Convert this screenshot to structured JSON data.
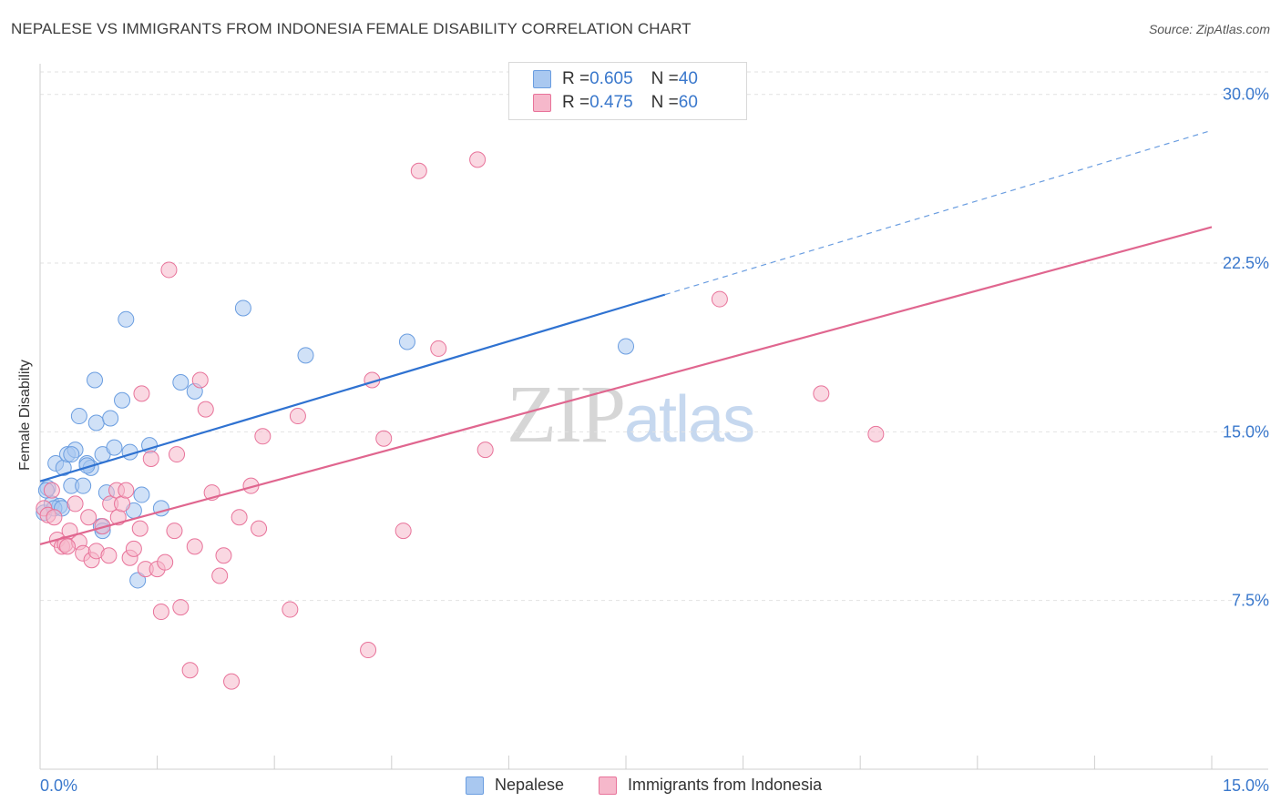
{
  "title": "NEPALESE VS IMMIGRANTS FROM INDONESIA FEMALE DISABILITY CORRELATION CHART",
  "source": "Source: ZipAtlas.com",
  "watermark": {
    "part1": "ZIP",
    "part2": "atlas"
  },
  "legend": {
    "rows": [
      {
        "r_label": "R = ",
        "r_value": "0.605",
        "n_label": "N = ",
        "n_value": "40",
        "color": "#a9c8f0"
      },
      {
        "r_label": "R = ",
        "r_value": "0.475",
        "n_label": "N = ",
        "n_value": "60",
        "color": "#f6b8cb"
      }
    ]
  },
  "chart_data": {
    "type": "scatter",
    "title": "NEPALESE VS IMMIGRANTS FROM INDONESIA FEMALE DISABILITY CORRELATION CHART",
    "xlabel": "",
    "ylabel": "Female Disability",
    "xlim": [
      0,
      15
    ],
    "ylim": [
      0,
      31
    ],
    "x_tick_labels": [
      "0.0%",
      "15.0%"
    ],
    "y_tick_labels": [
      "7.5%",
      "15.0%",
      "22.5%",
      "30.0%"
    ],
    "y_tick_values": [
      7.5,
      15.0,
      22.5,
      30.0
    ],
    "grid": "horizontal dashed",
    "legend_position": "top-center",
    "series": [
      {
        "name": "Nepalese",
        "color": "#6a9de0",
        "fill": "#a9c8f0",
        "R": 0.605,
        "N": 40,
        "trend": {
          "x0": 0,
          "y0": 12.8,
          "x1": 8.0,
          "y1": 21.1,
          "dashed_to_x": 15.0,
          "dashed_to_y": 28.4
        },
        "points": [
          [
            0.05,
            11.4
          ],
          [
            0.1,
            12.5
          ],
          [
            0.15,
            11.8
          ],
          [
            0.2,
            13.6
          ],
          [
            0.25,
            11.7
          ],
          [
            0.3,
            13.4
          ],
          [
            0.35,
            14.0
          ],
          [
            0.4,
            12.6
          ],
          [
            0.45,
            14.2
          ],
          [
            0.5,
            15.7
          ],
          [
            0.55,
            12.6
          ],
          [
            0.6,
            13.6
          ],
          [
            0.65,
            13.4
          ],
          [
            0.7,
            17.3
          ],
          [
            0.72,
            15.4
          ],
          [
            0.78,
            10.8
          ],
          [
            0.8,
            10.6
          ],
          [
            0.8,
            14.0
          ],
          [
            0.85,
            12.3
          ],
          [
            0.9,
            15.6
          ],
          [
            0.95,
            14.3
          ],
          [
            1.05,
            16.4
          ],
          [
            1.1,
            20.0
          ],
          [
            1.15,
            14.1
          ],
          [
            1.2,
            11.5
          ],
          [
            1.25,
            8.4
          ],
          [
            1.3,
            12.2
          ],
          [
            1.4,
            14.4
          ],
          [
            1.55,
            11.6
          ],
          [
            1.8,
            17.2
          ],
          [
            1.98,
            16.8
          ],
          [
            2.6,
            20.5
          ],
          [
            3.4,
            18.4
          ],
          [
            4.7,
            19.0
          ],
          [
            7.5,
            18.8
          ],
          [
            0.08,
            12.4
          ],
          [
            0.18,
            11.6
          ],
          [
            0.28,
            11.6
          ],
          [
            0.4,
            14.0
          ],
          [
            0.6,
            13.5
          ]
        ]
      },
      {
        "name": "Immigrants from Indonesia",
        "color": "#e8739a",
        "fill": "#f6b8cb",
        "R": 0.475,
        "N": 60,
        "trend": {
          "x0": 0,
          "y0": 10.0,
          "x1": 15.0,
          "y1": 24.1
        },
        "points": [
          [
            0.05,
            11.6
          ],
          [
            0.1,
            11.3
          ],
          [
            0.15,
            12.4
          ],
          [
            0.18,
            11.2
          ],
          [
            0.22,
            10.2
          ],
          [
            0.28,
            9.9
          ],
          [
            0.32,
            10.0
          ],
          [
            0.38,
            10.6
          ],
          [
            0.45,
            11.8
          ],
          [
            0.5,
            10.1
          ],
          [
            0.55,
            9.6
          ],
          [
            0.62,
            11.2
          ],
          [
            0.66,
            9.3
          ],
          [
            0.72,
            9.7
          ],
          [
            0.8,
            10.8
          ],
          [
            0.88,
            9.5
          ],
          [
            0.9,
            11.8
          ],
          [
            0.98,
            12.4
          ],
          [
            1.0,
            11.2
          ],
          [
            1.05,
            11.8
          ],
          [
            1.1,
            12.4
          ],
          [
            1.15,
            9.4
          ],
          [
            1.2,
            9.8
          ],
          [
            1.28,
            10.7
          ],
          [
            1.3,
            16.7
          ],
          [
            1.35,
            8.9
          ],
          [
            1.42,
            13.8
          ],
          [
            1.5,
            8.9
          ],
          [
            1.55,
            7.0
          ],
          [
            1.6,
            9.2
          ],
          [
            1.65,
            22.2
          ],
          [
            1.72,
            10.6
          ],
          [
            1.75,
            14.0
          ],
          [
            1.8,
            7.2
          ],
          [
            1.92,
            4.4
          ],
          [
            1.98,
            9.9
          ],
          [
            2.05,
            17.3
          ],
          [
            2.12,
            16.0
          ],
          [
            2.2,
            12.3
          ],
          [
            2.3,
            8.6
          ],
          [
            2.35,
            9.5
          ],
          [
            2.45,
            3.9
          ],
          [
            2.55,
            11.2
          ],
          [
            2.7,
            12.6
          ],
          [
            2.8,
            10.7
          ],
          [
            2.85,
            14.8
          ],
          [
            3.2,
            7.1
          ],
          [
            3.3,
            15.7
          ],
          [
            4.2,
            5.3
          ],
          [
            4.25,
            17.3
          ],
          [
            4.4,
            14.7
          ],
          [
            4.65,
            10.6
          ],
          [
            4.85,
            26.6
          ],
          [
            5.1,
            18.7
          ],
          [
            5.6,
            27.1
          ],
          [
            5.7,
            14.2
          ],
          [
            8.7,
            20.9
          ],
          [
            10.0,
            16.7
          ],
          [
            10.7,
            14.9
          ],
          [
            0.35,
            9.9
          ]
        ]
      }
    ]
  }
}
